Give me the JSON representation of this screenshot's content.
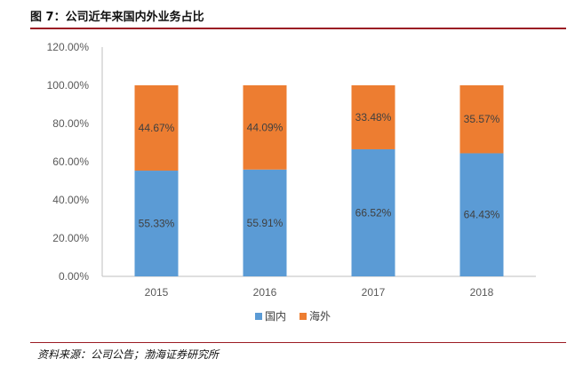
{
  "figure_title": "图 7：公司近年来国内外业务占比",
  "source_note": "资料来源：公司公告；渤海证券研究所",
  "colors": {
    "domestic": "#5b9bd5",
    "overseas": "#ed7d31",
    "axis": "#bfbfbf",
    "rule": "#9b1c24"
  },
  "chart_data": {
    "type": "bar",
    "stacked": true,
    "categories": [
      "2015",
      "2016",
      "2017",
      "2018"
    ],
    "series": [
      {
        "name": "国内",
        "values": [
          55.33,
          55.91,
          66.52,
          64.43
        ],
        "labels": [
          "55.33%",
          "55.91%",
          "66.52%",
          "64.43%"
        ]
      },
      {
        "name": "海外",
        "values": [
          44.67,
          44.09,
          33.48,
          35.57
        ],
        "labels": [
          "44.67%",
          "44.09%",
          "33.48%",
          "35.57%"
        ]
      }
    ],
    "ylim": [
      0,
      120
    ],
    "y_ticks": [
      "0.00%",
      "20.00%",
      "40.00%",
      "60.00%",
      "80.00%",
      "100.00%",
      "120.00%"
    ],
    "grid": false,
    "legend_position": "bottom"
  }
}
